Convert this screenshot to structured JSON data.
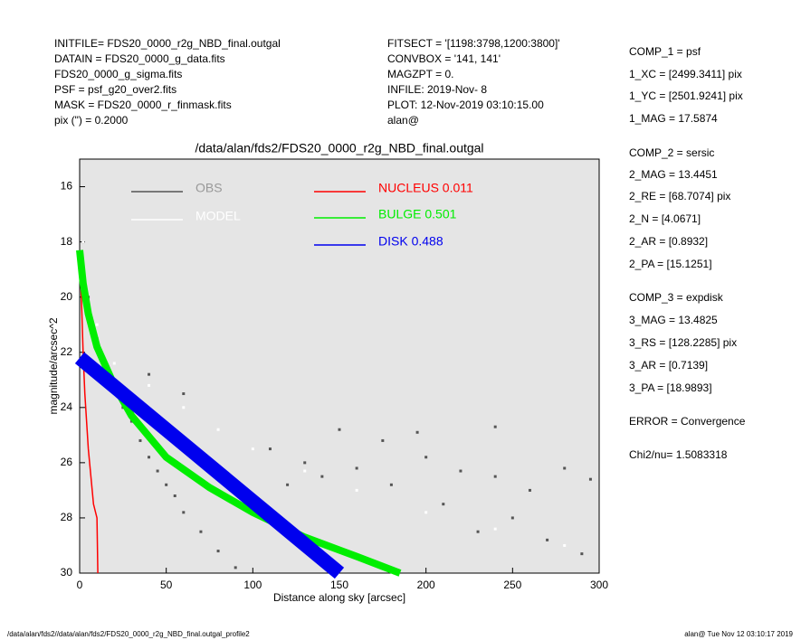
{
  "header": {
    "left": [
      "INITFILE= FDS20_0000_r2g_NBD_final.outgal",
      "DATAIN  = FDS20_0000_g_data.fits",
      "FDS20_0000_g_sigma.fits",
      "PSF     = psf_g20_over2.fits",
      "MASK    = FDS20_0000_r_finmask.fits",
      "pix (\") =  0.2000"
    ],
    "middle": [
      "FITSECT = '[1198:3798,1200:3800]'",
      "CONVBOX = '141, 141'",
      "MAGZPT  =               0.",
      "INFILE: 2019-Nov- 8",
      "PLOT: 12-Nov-2019 03:10:15.00",
      "alan@"
    ]
  },
  "params": [
    "COMP_1  = psf",
    "1_XC    = [2499.3411] pix",
    "1_YC    = [2501.9241] pix",
    "1_MAG   = 17.5874",
    "COMP_2  = sersic",
    "2_MAG   = 13.4451",
    "2_RE    = [68.7074] pix",
    "2_N     = [4.0671]",
    "2_AR    = [0.8932]",
    "2_PA    = [15.1251]",
    "COMP_3  = expdisk",
    "3_MAG   = 13.4825",
    "3_RS    = [128.2285] pix",
    "3_AR    = [0.7139]",
    "3_PA    = [18.9893]",
    "ERROR   = Convergence",
    "Chi2/nu=       1.5083318"
  ],
  "footer": {
    "left": "/data/alan/fds2//data/alan/fds2/FDS20_0000_r2g_NBD_final.outgal_profile2",
    "right": "alan@  Tue Nov 12 03:10:17 2019"
  },
  "chart_data": {
    "type": "scatter",
    "title": "/data/alan/fds2/FDS20_0000_r2g_NBD_final.outgal",
    "xlabel": "Distance along sky [arcsec]",
    "ylabel": "magnitude/arcsec^2",
    "xlim": [
      0,
      300
    ],
    "xticks": [
      0,
      50,
      100,
      150,
      200,
      250,
      300
    ],
    "ylim": [
      30,
      15
    ],
    "yticks": [
      16,
      18,
      20,
      22,
      24,
      26,
      28,
      30
    ],
    "background": "#e5e5e5",
    "series": [
      {
        "name": "OBS",
        "color": "#555555",
        "mode": "markers",
        "x": [
          2,
          5,
          10,
          15,
          20,
          25,
          30,
          35,
          40,
          45,
          50,
          55,
          60,
          70,
          80,
          90,
          100,
          120,
          140,
          160,
          180,
          200,
          220,
          240,
          260,
          280,
          295,
          210,
          230,
          250,
          270,
          290,
          150,
          175,
          195,
          240,
          60,
          40,
          110,
          130
        ],
        "values": [
          18,
          20,
          21.5,
          22.5,
          23.2,
          24,
          24.5,
          25.2,
          25.8,
          26.3,
          26.8,
          27.2,
          27.8,
          28.5,
          29.2,
          29.8,
          27.5,
          26.8,
          26.5,
          26.2,
          26.8,
          25.8,
          26.3,
          26.5,
          27,
          26.2,
          26.6,
          27.5,
          28.5,
          28,
          28.8,
          29.3,
          24.8,
          25.2,
          24.9,
          24.7,
          23.5,
          22.8,
          25.5,
          26
        ]
      },
      {
        "name": "MODEL",
        "color": "#ffffff",
        "mode": "markers",
        "x": [
          2,
          10,
          20,
          40,
          60,
          80,
          100,
          130,
          160,
          200,
          240,
          280
        ],
        "values": [
          18,
          21,
          22.4,
          23.2,
          24,
          24.8,
          25.5,
          26.3,
          27,
          27.8,
          28.4,
          29
        ]
      },
      {
        "name": "NUCLEUS  0.011",
        "color": "#ff0000",
        "mode": "lines",
        "x": [
          0,
          1,
          2,
          3,
          5,
          8,
          10,
          10.5
        ],
        "values": [
          18.5,
          20,
          22,
          23.5,
          25.5,
          27.5,
          28,
          30
        ]
      },
      {
        "name": "BULGE  0.501",
        "color": "#00ee00",
        "mode": "lines",
        "x": [
          0,
          2,
          5,
          10,
          20,
          30,
          50,
          75,
          100,
          130,
          160,
          185
        ],
        "values": [
          18.3,
          19.5,
          20.6,
          21.8,
          23.2,
          24.3,
          25.8,
          26.9,
          27.8,
          28.7,
          29.4,
          30
        ]
      },
      {
        "name": "DISK  0.488",
        "color": "#0000ee",
        "mode": "lines",
        "x": [
          0,
          25,
          50,
          75,
          100,
          125,
          150
        ],
        "values": [
          22.2,
          23.5,
          24.8,
          26.1,
          27.4,
          28.7,
          30
        ]
      }
    ]
  }
}
